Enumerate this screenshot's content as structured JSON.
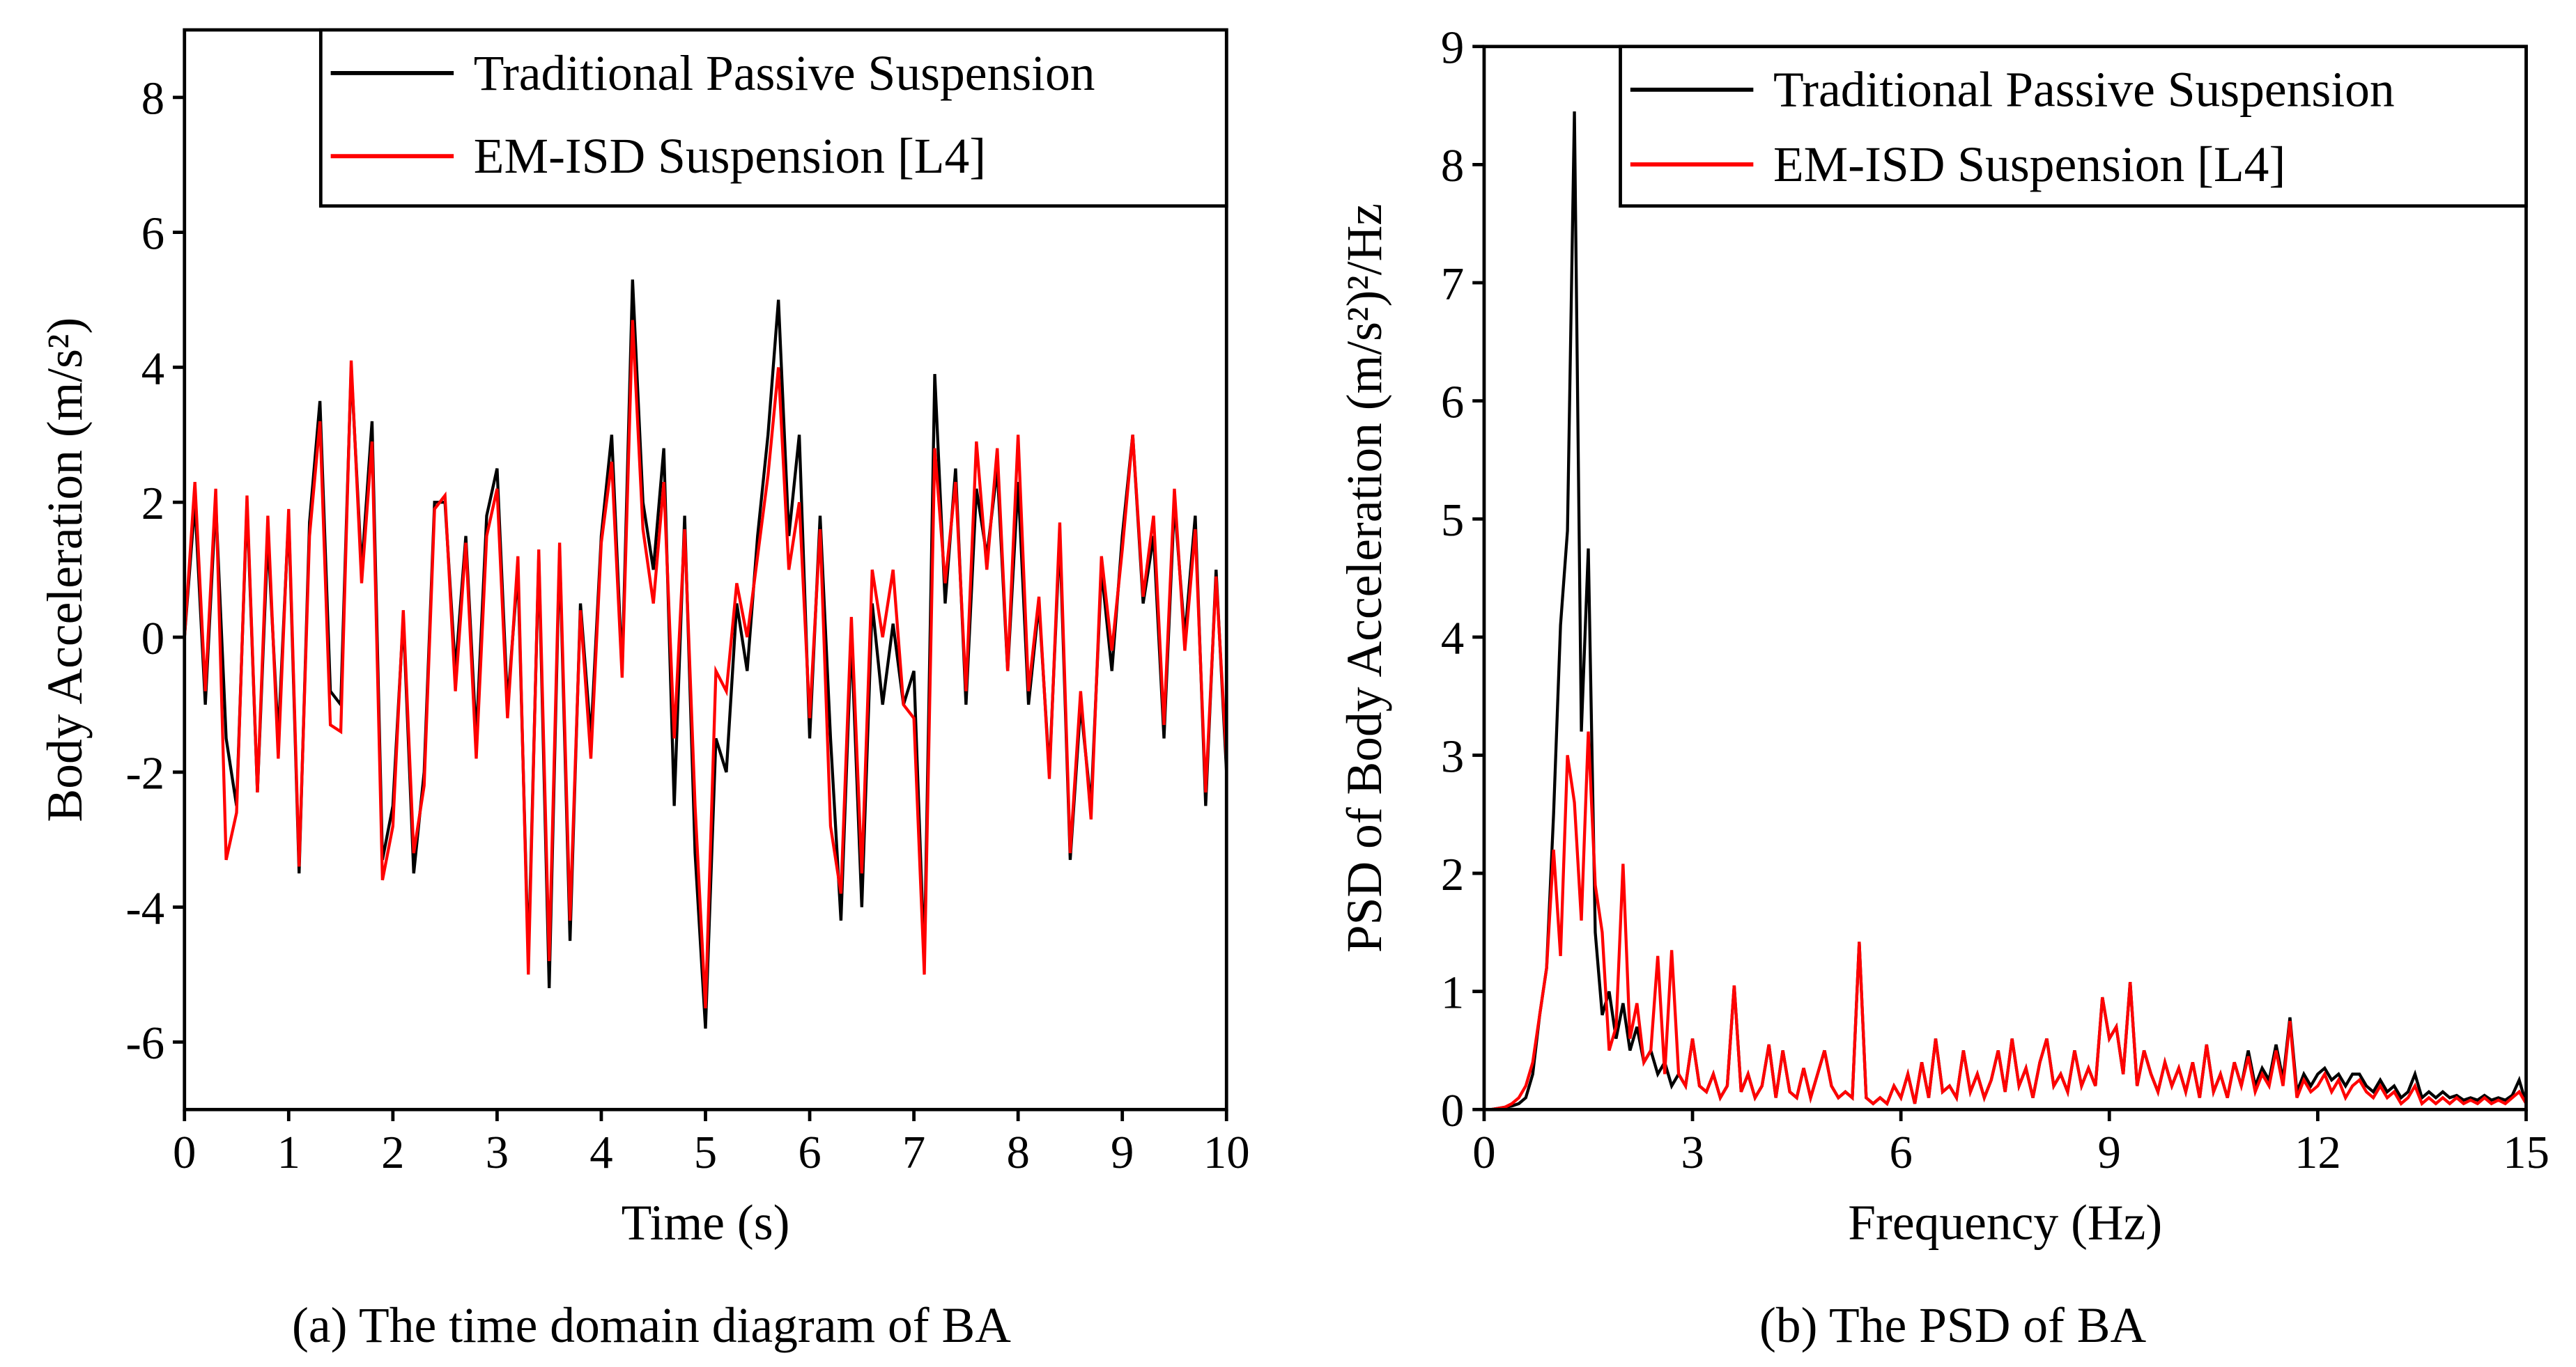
{
  "chart_data": [
    {
      "type": "line",
      "caption": "(a) The time domain diagram of BA",
      "xlabel": "Time (s)",
      "ylabel": "Body Acceleration (m/s²)",
      "xlim": [
        0,
        10
      ],
      "ylim": [
        -7,
        9
      ],
      "xticks": [
        0,
        1,
        2,
        3,
        4,
        5,
        6,
        7,
        8,
        9,
        10
      ],
      "yticks": [
        -6,
        -4,
        -2,
        0,
        2,
        4,
        6,
        8
      ],
      "legend": "upper right",
      "x": [
        0,
        0.1,
        0.2,
        0.3,
        0.4,
        0.5,
        0.6,
        0.7,
        0.8,
        0.9,
        1,
        1.1,
        1.2,
        1.3,
        1.4,
        1.5,
        1.6,
        1.7,
        1.8,
        1.9,
        2,
        2.1,
        2.2,
        2.3,
        2.4,
        2.5,
        2.6,
        2.7,
        2.8,
        2.9,
        3,
        3.1,
        3.2,
        3.3,
        3.4,
        3.5,
        3.6,
        3.7,
        3.8,
        3.9,
        4,
        4.1,
        4.2,
        4.3,
        4.4,
        4.5,
        4.6,
        4.7,
        4.8,
        4.9,
        5,
        5.1,
        5.2,
        5.3,
        5.4,
        5.5,
        5.6,
        5.7,
        5.8,
        5.9,
        6,
        6.1,
        6.2,
        6.3,
        6.4,
        6.5,
        6.6,
        6.7,
        6.8,
        6.9,
        7,
        7.1,
        7.2,
        7.3,
        7.4,
        7.5,
        7.6,
        7.7,
        7.8,
        7.9,
        8,
        8.1,
        8.2,
        8.3,
        8.4,
        8.5,
        8.6,
        8.7,
        8.8,
        8.9,
        9,
        9.1,
        9.2,
        9.3,
        9.4,
        9.5,
        9.6,
        9.7,
        9.8,
        9.9,
        10
      ],
      "series": [
        {
          "name": "Traditional Passive Suspension",
          "color": "#000000",
          "values": [
            0,
            2,
            -1,
            2,
            -1.5,
            -2.5,
            2,
            -2.3,
            1.5,
            -1.5,
            1.8,
            -3.5,
            1.7,
            3.5,
            -0.8,
            -1,
            4,
            1,
            3.2,
            -3.3,
            -2.5,
            0.3,
            -3.5,
            -2,
            2,
            2,
            -0.5,
            1.5,
            -1.5,
            1.8,
            2.5,
            -1,
            1,
            -4.8,
            1.2,
            -5.2,
            1.3,
            -4.5,
            0.5,
            -1.5,
            1.5,
            3,
            -0.5,
            5.3,
            2,
            1,
            2.8,
            -2.5,
            1.8,
            -3.2,
            -5.8,
            -1.5,
            -2,
            0.5,
            -0.5,
            1.5,
            3,
            5,
            1.5,
            3,
            -1.5,
            1.8,
            -1.5,
            -4.2,
            0,
            -4,
            0.5,
            -1,
            0.2,
            -1,
            -0.5,
            -4.8,
            3.9,
            0.5,
            2.5,
            -1,
            2.2,
            1.2,
            2.5,
            -0.5,
            2.3,
            -1,
            0.5,
            -2,
            1.5,
            -3.3,
            -1,
            -2.5,
            1,
            -0.5,
            1.5,
            3,
            0.5,
            1.5,
            -1.5,
            2,
            0,
            1.8,
            -2.5,
            1,
            -2
          ]
        },
        {
          "name": "EM-ISD Suspension [L4]",
          "color": "#ff0000",
          "values": [
            0,
            2.3,
            -0.8,
            2.2,
            -3.3,
            -2.6,
            2.1,
            -2.3,
            1.8,
            -1.8,
            1.9,
            -3.4,
            1.5,
            3.2,
            -1.3,
            -1.4,
            4.1,
            0.8,
            2.9,
            -3.6,
            -2.8,
            0.4,
            -3.2,
            -2.2,
            1.9,
            2.1,
            -0.8,
            1.4,
            -1.8,
            1.5,
            2.2,
            -1.2,
            1.2,
            -5,
            1.3,
            -4.8,
            1.4,
            -4.2,
            0.4,
            -1.8,
            1.4,
            2.6,
            -0.6,
            4.7,
            1.6,
            0.5,
            2.3,
            -1.5,
            1.6,
            -2.5,
            -5.5,
            -0.5,
            -0.8,
            0.8,
            0,
            1.2,
            2.4,
            4,
            1,
            2,
            -1.2,
            1.6,
            -2.8,
            -3.8,
            0.3,
            -3.5,
            1,
            0,
            1,
            -1,
            -1.2,
            -5,
            2.8,
            0.8,
            2.3,
            -0.8,
            2.9,
            1,
            2.8,
            -0.5,
            3,
            -0.8,
            0.6,
            -2.1,
            1.7,
            -3.2,
            -0.8,
            -2.7,
            1.2,
            -0.2,
            1.3,
            3,
            0.6,
            1.8,
            -1.3,
            2.2,
            -0.2,
            1.6,
            -2.3,
            0.9,
            -1.8
          ]
        }
      ]
    },
    {
      "type": "line",
      "caption": "(b) The PSD of BA",
      "xlabel": "Frequency (Hz)",
      "ylabel": "PSD of Body Acceleration (m/s²)²/Hz",
      "xlim": [
        0,
        15
      ],
      "ylim": [
        0,
        9
      ],
      "xticks": [
        0,
        3,
        6,
        9,
        12,
        15
      ],
      "yticks": [
        0,
        1,
        2,
        3,
        4,
        5,
        6,
        7,
        8,
        9
      ],
      "legend": "upper right",
      "x": [
        0,
        0.1,
        0.2,
        0.3,
        0.4,
        0.5,
        0.6,
        0.7,
        0.8,
        0.9,
        1,
        1.1,
        1.2,
        1.3,
        1.4,
        1.5,
        1.6,
        1.7,
        1.8,
        1.9,
        2,
        2.1,
        2.2,
        2.3,
        2.4,
        2.5,
        2.6,
        2.7,
        2.8,
        2.9,
        3,
        3.1,
        3.2,
        3.3,
        3.4,
        3.5,
        3.6,
        3.7,
        3.8,
        3.9,
        4,
        4.1,
        4.2,
        4.3,
        4.4,
        4.5,
        4.6,
        4.7,
        4.8,
        4.9,
        5,
        5.1,
        5.2,
        5.3,
        5.4,
        5.5,
        5.6,
        5.7,
        5.8,
        5.9,
        6,
        6.1,
        6.2,
        6.3,
        6.4,
        6.5,
        6.6,
        6.7,
        6.8,
        6.9,
        7,
        7.1,
        7.2,
        7.3,
        7.4,
        7.5,
        7.6,
        7.7,
        7.8,
        7.9,
        8,
        8.1,
        8.2,
        8.3,
        8.4,
        8.5,
        8.6,
        8.7,
        8.8,
        8.9,
        9,
        9.1,
        9.2,
        9.3,
        9.4,
        9.5,
        9.6,
        9.7,
        9.8,
        9.9,
        10,
        10.1,
        10.2,
        10.3,
        10.4,
        10.5,
        10.6,
        10.7,
        10.8,
        10.9,
        11,
        11.1,
        11.2,
        11.3,
        11.4,
        11.5,
        11.6,
        11.7,
        11.8,
        11.9,
        12,
        12.1,
        12.2,
        12.3,
        12.4,
        12.5,
        12.6,
        12.7,
        12.8,
        12.9,
        13,
        13.1,
        13.2,
        13.3,
        13.4,
        13.5,
        13.6,
        13.7,
        13.8,
        13.9,
        14,
        14.1,
        14.2,
        14.3,
        14.4,
        14.5,
        14.6,
        14.7,
        14.8,
        14.9,
        15
      ],
      "series": [
        {
          "name": "Traditional Passive Suspension",
          "color": "#000000",
          "values": [
            0,
            0,
            0.01,
            0.02,
            0.03,
            0.05,
            0.1,
            0.3,
            0.8,
            1.2,
            2.5,
            4.1,
            4.9,
            8.45,
            3.2,
            4.75,
            1.5,
            0.8,
            1,
            0.6,
            0.9,
            0.5,
            0.7,
            0.4,
            0.5,
            0.3,
            0.4,
            0.2,
            0.3,
            0.2,
            0.6,
            0.2,
            0.15,
            0.3,
            0.1,
            0.2,
            1.05,
            0.15,
            0.3,
            0.1,
            0.2,
            0.55,
            0.1,
            0.5,
            0.15,
            0.1,
            0.35,
            0.1,
            0.3,
            0.5,
            0.2,
            0.1,
            0.15,
            0.1,
            1.42,
            0.1,
            0.05,
            0.1,
            0.05,
            0.2,
            0.1,
            0.3,
            0.05,
            0.4,
            0.1,
            0.6,
            0.15,
            0.2,
            0.1,
            0.5,
            0.15,
            0.3,
            0.1,
            0.25,
            0.5,
            0.15,
            0.6,
            0.2,
            0.35,
            0.1,
            0.4,
            0.6,
            0.2,
            0.3,
            0.15,
            0.5,
            0.2,
            0.35,
            0.2,
            0.95,
            0.6,
            0.7,
            0.3,
            1.08,
            0.2,
            0.5,
            0.3,
            0.15,
            0.4,
            0.2,
            0.35,
            0.15,
            0.4,
            0.1,
            0.55,
            0.15,
            0.3,
            0.1,
            0.4,
            0.2,
            0.5,
            0.2,
            0.35,
            0.25,
            0.55,
            0.25,
            0.78,
            0.15,
            0.3,
            0.2,
            0.3,
            0.35,
            0.25,
            0.3,
            0.2,
            0.3,
            0.3,
            0.2,
            0.15,
            0.25,
            0.15,
            0.2,
            0.1,
            0.15,
            0.3,
            0.1,
            0.15,
            0.1,
            0.15,
            0.1,
            0.12,
            0.08,
            0.1,
            0.08,
            0.12,
            0.08,
            0.1,
            0.08,
            0.12,
            0.25,
            0.05
          ]
        },
        {
          "name": "EM-ISD Suspension [L4]",
          "color": "#ff0000",
          "values": [
            0,
            0,
            0.01,
            0.02,
            0.05,
            0.1,
            0.2,
            0.4,
            0.8,
            1.2,
            2.2,
            1.3,
            3,
            2.6,
            1.6,
            3.2,
            1.9,
            1.5,
            0.5,
            0.7,
            2.08,
            0.6,
            0.9,
            0.4,
            0.5,
            1.3,
            0.3,
            1.35,
            0.3,
            0.2,
            0.6,
            0.2,
            0.15,
            0.3,
            0.1,
            0.2,
            1.05,
            0.15,
            0.3,
            0.1,
            0.2,
            0.55,
            0.1,
            0.5,
            0.15,
            0.1,
            0.35,
            0.1,
            0.3,
            0.5,
            0.2,
            0.1,
            0.15,
            0.1,
            1.42,
            0.1,
            0.05,
            0.1,
            0.05,
            0.2,
            0.1,
            0.3,
            0.05,
            0.4,
            0.1,
            0.6,
            0.15,
            0.2,
            0.1,
            0.5,
            0.15,
            0.3,
            0.1,
            0.25,
            0.5,
            0.15,
            0.6,
            0.2,
            0.35,
            0.1,
            0.4,
            0.6,
            0.2,
            0.3,
            0.15,
            0.5,
            0.2,
            0.35,
            0.2,
            0.95,
            0.6,
            0.7,
            0.3,
            1.08,
            0.2,
            0.5,
            0.3,
            0.15,
            0.4,
            0.2,
            0.35,
            0.15,
            0.4,
            0.1,
            0.55,
            0.15,
            0.3,
            0.1,
            0.4,
            0.2,
            0.45,
            0.15,
            0.3,
            0.2,
            0.5,
            0.2,
            0.75,
            0.1,
            0.25,
            0.15,
            0.2,
            0.3,
            0.15,
            0.25,
            0.1,
            0.2,
            0.25,
            0.15,
            0.1,
            0.2,
            0.1,
            0.15,
            0.05,
            0.1,
            0.2,
            0.05,
            0.1,
            0.05,
            0.1,
            0.05,
            0.1,
            0.05,
            0.08,
            0.05,
            0.1,
            0.05,
            0.08,
            0.05,
            0.1,
            0.15,
            0.05
          ]
        }
      ]
    }
  ]
}
